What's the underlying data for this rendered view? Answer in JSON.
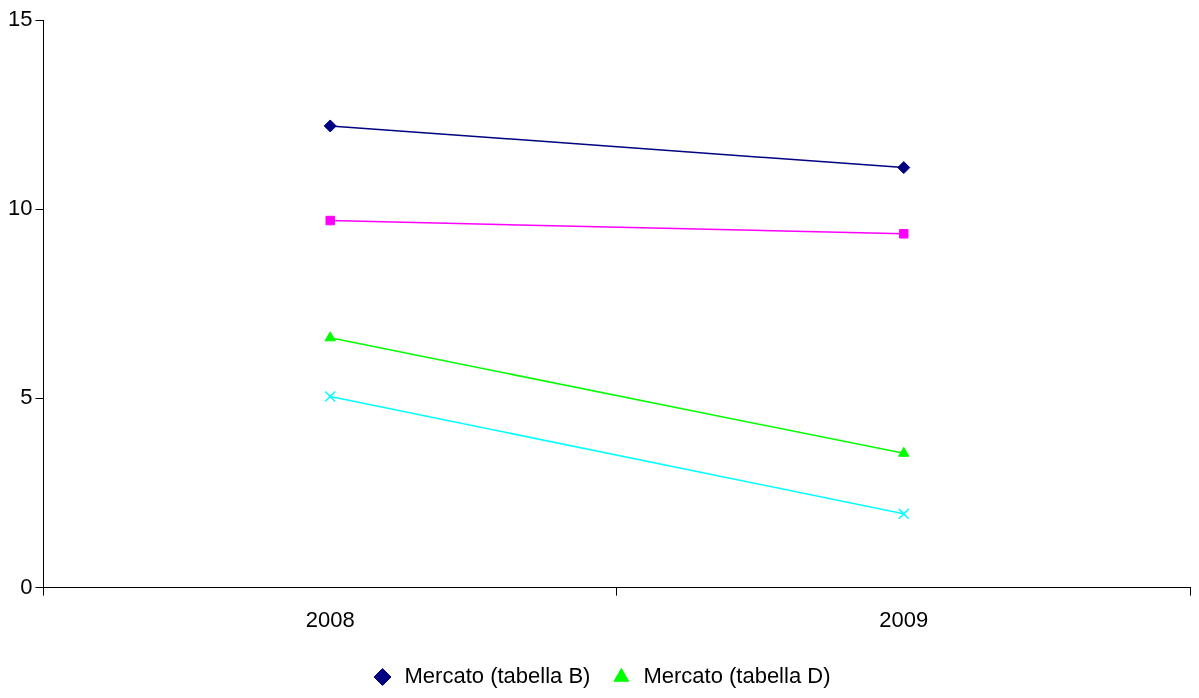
{
  "chart_data": {
    "type": "line",
    "categories": [
      "2008",
      "2009"
    ],
    "series": [
      {
        "name": "Mercato (tabella B)",
        "color": "#000080",
        "marker": "diamond",
        "values": [
          12.2,
          11.1
        ]
      },
      {
        "color": "#ff00ff",
        "marker": "square",
        "values": [
          9.7,
          9.35
        ]
      },
      {
        "name": "Mercato (tabella D)",
        "color": "#00ff00",
        "marker": "triangle",
        "values": [
          6.6,
          3.55
        ]
      },
      {
        "color": "#00ffff",
        "marker": "cross",
        "values": [
          5.05,
          1.95
        ]
      }
    ],
    "ylim": [
      0,
      15
    ],
    "yticks": [
      0,
      5,
      10,
      15
    ],
    "grid": false,
    "legend": "bottom",
    "line_style": "solid"
  }
}
